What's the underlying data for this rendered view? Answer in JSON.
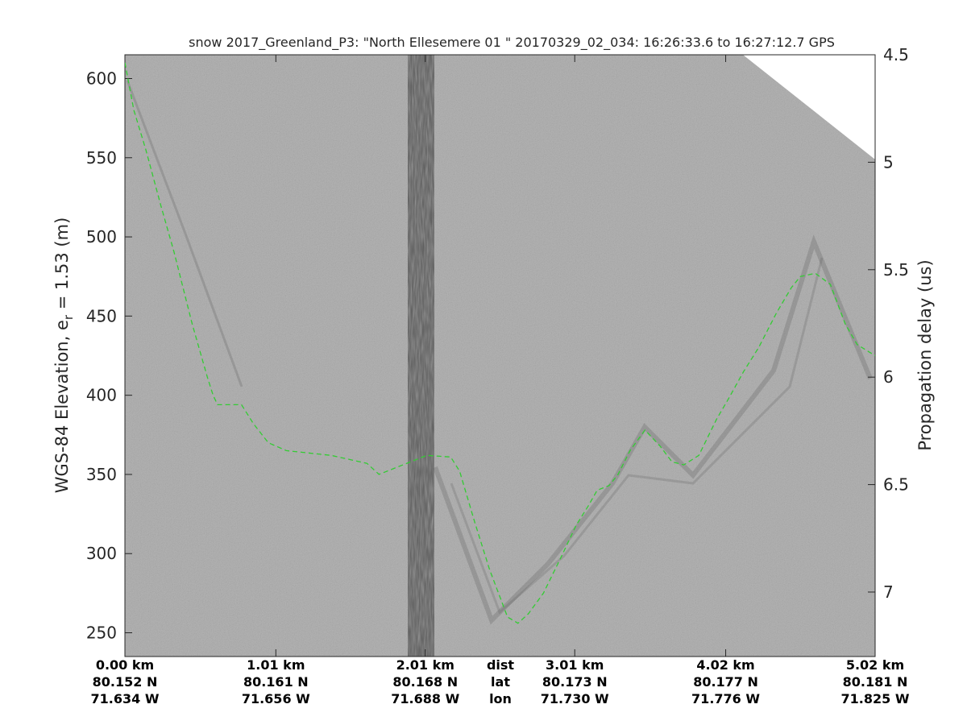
{
  "chart_data": {
    "type": "line",
    "title": "snow 2017_Greenland_P3: \"North Ellesemere 01 \"  20170329_02_034: 16:26:33.6 to 16:27:12.7 GPS",
    "ylabel_left": "WGS-84 Elevation, e",
    "ylabel_left_sub": "r",
    "ylabel_left_tail": " = 1.53 (m)",
    "ylabel_right": "Propagation delay (us)",
    "ylim": [
      235,
      615
    ],
    "yticks": [
      250,
      300,
      350,
      400,
      450,
      500,
      550,
      600
    ],
    "y2lim": [
      4.5,
      7.3
    ],
    "y2ticks": [
      4.5,
      5,
      5.5,
      6,
      6.5,
      7
    ],
    "xlim": [
      0,
      5.02
    ],
    "xticks": [
      0,
      1.01,
      2.01,
      3.01,
      4.02,
      5.02
    ],
    "xtick_rows": {
      "dist": [
        "0.00 km",
        "1.01 km",
        "2.01 km",
        "3.01 km",
        "4.02 km",
        "5.02 km"
      ],
      "lat": [
        "80.152 N",
        "80.161 N",
        "80.168 N",
        "80.173 N",
        "80.177 N",
        "80.181 N"
      ],
      "lon": [
        "71.634 W",
        "71.656 W",
        "71.688 W",
        "71.730 W",
        "71.776 W",
        "71.825 W"
      ]
    },
    "row_labels": [
      "dist",
      "lat",
      "lon"
    ],
    "grid": false,
    "series": [
      {
        "color": "#33cc33",
        "style": "dashed",
        "x": [
          0.0,
          0.06,
          0.14,
          0.24,
          0.33,
          0.45,
          0.55,
          0.59,
          0.62,
          0.78,
          0.86,
          0.96,
          1.08,
          1.38,
          1.62,
          1.7,
          2.02,
          2.18,
          2.24,
          2.34,
          2.44,
          2.56,
          2.63,
          2.7,
          2.8,
          2.92,
          3.02,
          3.1,
          3.16,
          3.24,
          3.3,
          3.38,
          3.48,
          3.58,
          3.66,
          3.74,
          3.84,
          3.96,
          4.04,
          4.14,
          4.24,
          4.36,
          4.46,
          4.52,
          4.62,
          4.72,
          4.82,
          4.9,
          5.02
        ],
        "y": [
          610,
          580,
          555,
          520,
          490,
          445,
          412,
          400,
          394,
          394,
          382,
          370,
          365,
          362,
          357,
          350,
          362,
          361,
          352,
          320,
          290,
          260,
          256,
          262,
          275,
          298,
          318,
          330,
          340,
          343,
          350,
          365,
          378,
          368,
          358,
          356,
          362,
          385,
          398,
          415,
          430,
          452,
          468,
          475,
          477,
          470,
          445,
          432,
          425
        ]
      }
    ]
  }
}
